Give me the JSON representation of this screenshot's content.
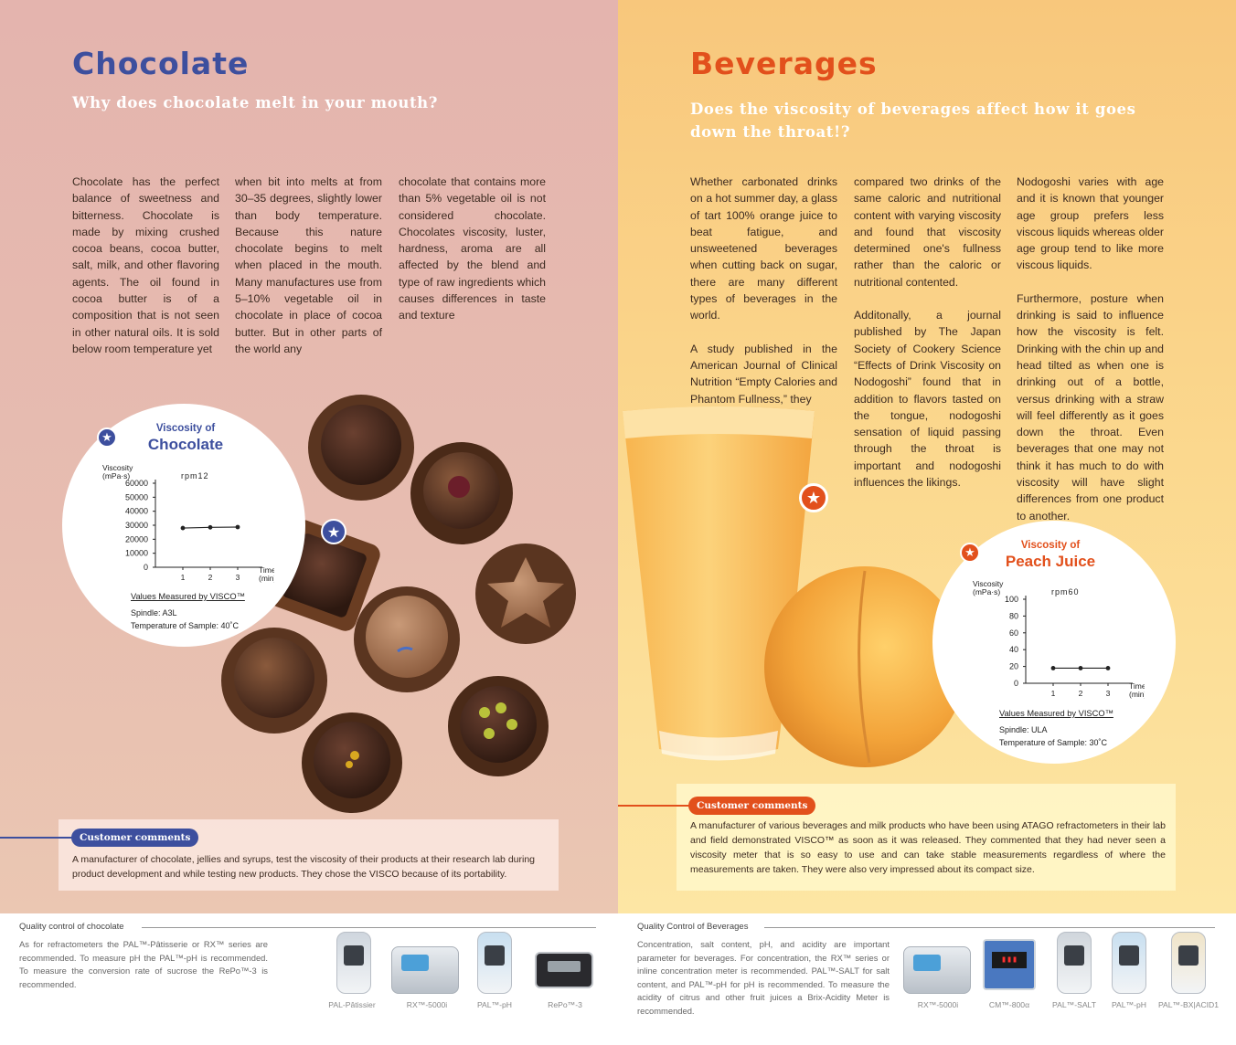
{
  "chocolate": {
    "title": "Chocolate",
    "subtitle": "Why does chocolate melt in your mouth?",
    "col1": "Chocolate has the perfect balance of sweetness and bitterness. Chocolate is made by mixing crushed cocoa beans, cocoa butter, salt, milk, and other flavoring agents. The oil found in cocoa butter is of a composition that is not seen in other natural oils. It is sold below room temperature yet",
    "col2": "when bit into melts at from 30–35 degrees, slightly lower than body temperature. Because this nature chocolate begins to melt when placed in the mouth. Many manufactures use from 5–10% vegetable oil in chocolate in place of cocoa butter. But in other parts of the world any",
    "col3": "chocolate that contains more than 5% vegetable oil is not considered chocolate. Chocolates viscosity, luster, hardness, aroma are all affected by the blend and type of raw ingredients which causes differences in taste and texture",
    "chart_title_small": "Viscosity of",
    "chart_title_big": "Chocolate",
    "chart_note_title": "Values Measured by VISCO™",
    "chart_note_1": "Spindle: A3L",
    "chart_note_2": "Temperature of Sample: 40˚C",
    "comment_label": "Customer comments",
    "comment_text": "A manufacturer of chocolate, jellies and syrups, test the viscosity of their products at their research lab during product development and while testing new products. They chose the VISCO because of its portability.",
    "qc_title": "Quality control of chocolate",
    "qc_text": "As for refractometers the PAL™-Pâtisserie or RX™ series are recommended. To measure pH the PAL™-pH is recommended. To measure the conversion rate of sucrose the RePo™-3 is recommended.",
    "products": [
      "PAL-Pâtissier",
      "RX™-5000i",
      "PAL™-pH",
      "RePo™-3"
    ]
  },
  "beverages": {
    "title": "Beverages",
    "subtitle": "Does the viscosity of beverages affect how it goes down the throat!?",
    "col1a": "Whether carbonated drinks on a hot summer day, a glass of tart 100% orange juice to beat fatigue, and unsweetened beverages when cutting back on sugar, there are many different types of beverages in the world.",
    "col1b": "A study published in the American Journal of Clinical Nutrition “Empty Calories and Phantom Fullness,” they",
    "col2a": "compared two drinks of the same caloric and nutritional content with varying viscosity and found that viscosity determined one's fullness rather than the caloric or nutritional contented.",
    "col2b": "Additonally, a journal published by The Japan Society of Cookery Science “Effects of Drink Viscosity on Nodogoshi” found that in addition to flavors tasted on the tongue, nodogoshi sensation of liquid passing through the throat is important and nodogoshi influences the likings.",
    "col3a": "Nodogoshi varies with age and it is known that younger age group prefers less viscous liquids whereas older age group tend to like more viscous liquids.",
    "col3b": "Furthermore, posture when drinking is said to influence how the viscosity is felt. Drinking with the chin up and head tilted as when one is drinking out of a bottle, versus drinking with a straw will feel differently as it goes down the throat. Even beverages that one may not think it has much to do with viscosity will have slight differences from one product to another.",
    "chart_title_small": "Viscosity of",
    "chart_title_big": "Peach Juice",
    "chart_note_title": "Values Measured by VISCO™",
    "chart_note_1": "Spindle: ULA",
    "chart_note_2": "Temperature of Sample: 30˚C",
    "comment_label": "Customer comments",
    "comment_text": "A manufacturer of various beverages and milk products who have been using ATAGO refractometers in their lab and field demonstrated VISCO™ as soon as it was released. They commented that they had never seen a viscosity meter that is so easy to use and can take stable measurements regardless of where the measurements are taken. They were also very impressed about its compact size.",
    "qc_title": "Quality Control of Beverages",
    "qc_text": "Concentration, salt content, pH, and acidity are important parameter for beverages. For concentration, the RX™ series or inline concentration meter is recommended. PAL™-SALT for salt content, and PAL™-pH for pH is recommended. To measure the acidity of citrus and other fruit juices a Brix-Acidity Meter is recommended.",
    "products": [
      "RX™-5000i",
      "CM™-800α",
      "PAL™-SALT",
      "PAL™-pH",
      "PAL™-BX|ACID1"
    ]
  },
  "chart_data": [
    {
      "type": "line",
      "title": "Viscosity of Chocolate",
      "subtitle": "rpm12",
      "xlabel": "Time (min)",
      "ylabel": "Viscosity (mPa·s)",
      "x": [
        1,
        2,
        3
      ],
      "values": [
        28000,
        28500,
        28700
      ],
      "xlim": [
        0,
        3.5
      ],
      "ylim": [
        0,
        60000
      ],
      "yticks": [
        "0",
        "10000",
        "20000",
        "30000",
        "40000",
        "50000",
        "60000"
      ],
      "xticks": [
        "1",
        "2",
        "3"
      ],
      "color": "#222222"
    },
    {
      "type": "line",
      "title": "Viscosity of Peach Juice",
      "subtitle": "rpm60",
      "xlabel": "Time (min)",
      "ylabel": "Viscosity (mPa·s)",
      "x": [
        1,
        2,
        3
      ],
      "values": [
        18,
        18,
        18
      ],
      "xlim": [
        0,
        3.5
      ],
      "ylim": [
        0,
        100
      ],
      "yticks": [
        "0",
        "20",
        "40",
        "60",
        "80",
        "100"
      ],
      "xticks": [
        "1",
        "2",
        "3"
      ],
      "color": "#222222"
    }
  ],
  "chart_labels": {
    "y_label_1": "Viscosity",
    "y_label_2": "(mPa·s)",
    "x_label_1": "Time",
    "x_label_2": "(min)",
    "choc_rpm": "rpm12",
    "peach_rpm": "rpm60"
  },
  "colors": {
    "chocolate_accent": "#3d4f9e",
    "beverage_accent": "#e2501c"
  }
}
